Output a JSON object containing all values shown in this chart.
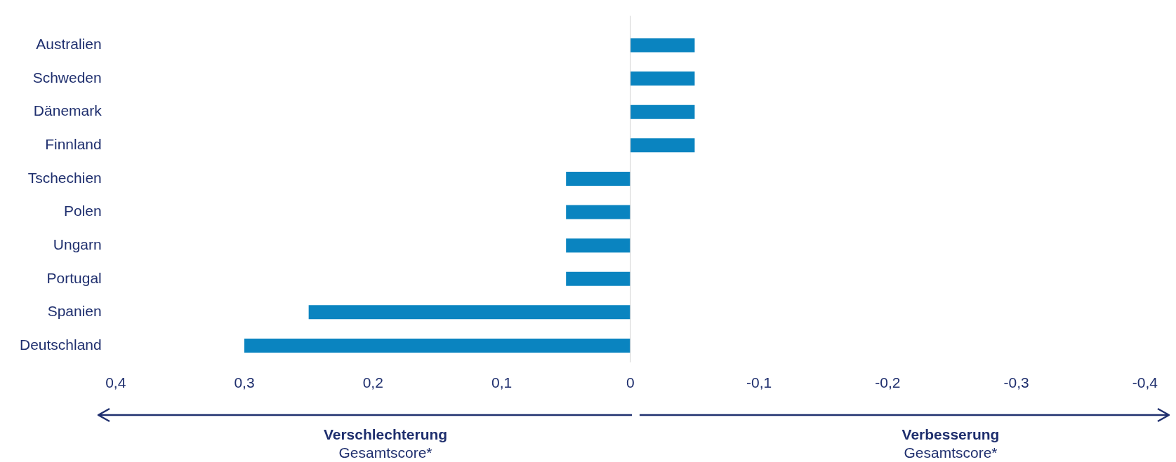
{
  "chart_data": {
    "type": "bar",
    "orientation": "horizontal",
    "categories": [
      "Australien",
      "Schweden",
      "Dänemark",
      "Finnland",
      "Tschechien",
      "Polen",
      "Ungarn",
      "Portugal",
      "Spanien",
      "Deutschland"
    ],
    "values": [
      -0.05,
      -0.05,
      -0.05,
      -0.05,
      0.05,
      0.05,
      0.05,
      0.05,
      0.25,
      0.3
    ],
    "color": "#0a84c0",
    "xlim": [
      0.4,
      -0.4
    ],
    "xticks": [
      {
        "value": 0.4,
        "label": "0,4"
      },
      {
        "value": 0.3,
        "label": "0,3"
      },
      {
        "value": 0.2,
        "label": "0,2"
      },
      {
        "value": 0.1,
        "label": "0,1"
      },
      {
        "value": 0,
        "label": "0"
      },
      {
        "value": -0.1,
        "label": "-0,1"
      },
      {
        "value": -0.2,
        "label": "-0,2"
      },
      {
        "value": -0.3,
        "label": "-0,3"
      },
      {
        "value": -0.4,
        "label": "-0,4"
      }
    ],
    "grid": false,
    "legend": false,
    "ref_lines": [
      {
        "axis": "x",
        "value": 0,
        "color": "#d0d0d0"
      }
    ],
    "annotations": [
      "Verschlechterung",
      "Gesamtscore*",
      "Verbesserung",
      "Gesamtscore*"
    ]
  }
}
